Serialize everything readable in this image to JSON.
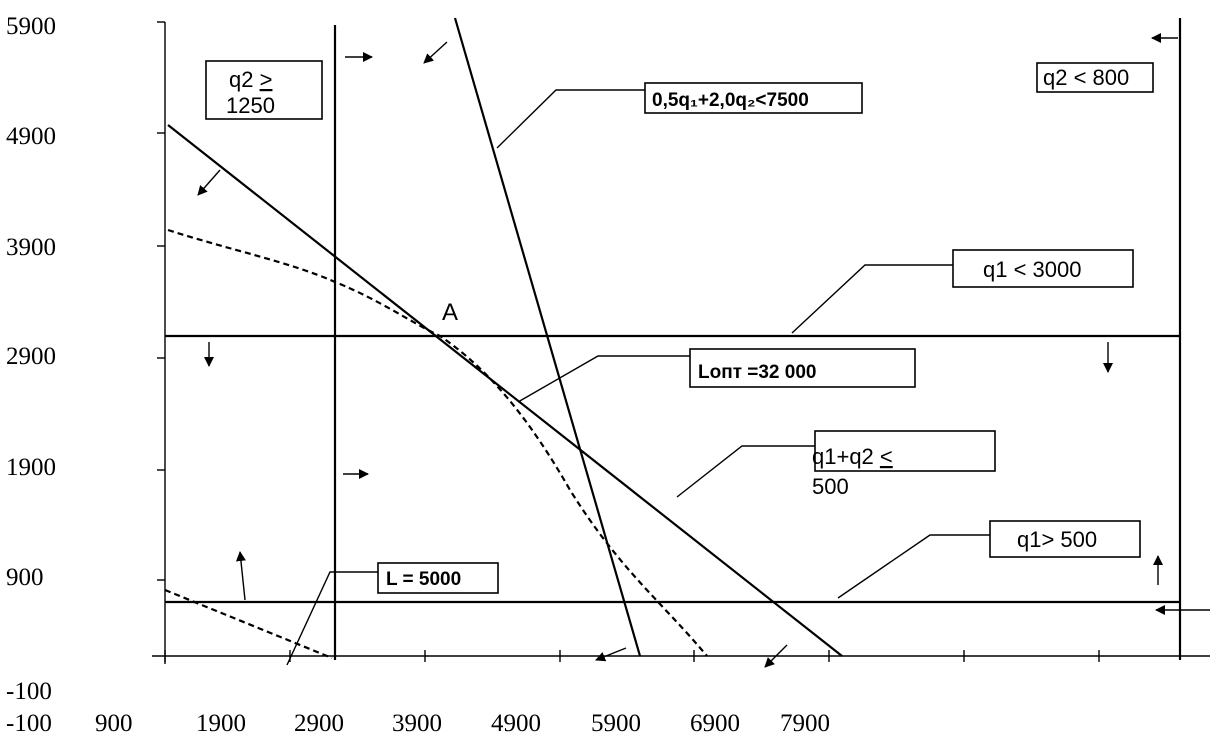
{
  "chart_data": {
    "type": "line",
    "y_ticks": [
      "5900",
      "4900",
      "3900",
      "2900",
      "1900",
      "900",
      "-100"
    ],
    "x_ticks": [
      "-100",
      "900",
      "1900",
      "2900",
      "3900",
      "4900",
      "5900",
      "6900",
      "7900"
    ],
    "point_label": "A",
    "labels": {
      "c1": "q2 ≥ 1250",
      "c1_line1": "q2 ",
      "c1_sym": ">",
      "c1_line2": "1250",
      "c2": "0,5q₁+2,0q₂<7500",
      "c3": "q2 < 800",
      "c4": "q1 <  3000",
      "c5": "Lопт =32 000",
      "c6": "q1+q2 ≤ 500",
      "c6_line1": "q1+q2 ",
      "c6_sym": "<",
      "c6_line2": "500",
      "c7": "q1> 500",
      "c8": "L = 5000"
    }
  }
}
